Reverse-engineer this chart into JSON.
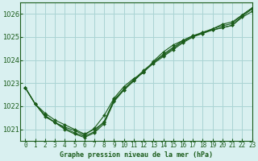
{
  "title": "Graphe pression niveau de la mer (hPa)",
  "background_color": "#d9f0f0",
  "grid_color": "#aad4d4",
  "line_color": "#1a5c1a",
  "marker_color": "#1a5c1a",
  "xlim": [
    -0.5,
    23
  ],
  "ylim": [
    1020.5,
    1026.5
  ],
  "yticks": [
    1021,
    1022,
    1023,
    1024,
    1025,
    1026
  ],
  "xticks": [
    0,
    1,
    2,
    3,
    4,
    5,
    6,
    7,
    8,
    9,
    10,
    11,
    12,
    13,
    14,
    15,
    16,
    17,
    18,
    19,
    20,
    21,
    22,
    23
  ],
  "series": [
    [
      1022.8,
      1022.1,
      1021.7,
      1021.4,
      1021.2,
      1021.0,
      1020.8,
      1021.0,
      1021.3,
      1022.3,
      1022.7,
      1023.1,
      1023.5,
      1023.9,
      1024.2,
      1024.5,
      1024.8,
      1025.0,
      1025.2,
      1025.3,
      1025.4,
      1025.5,
      1025.9,
      1026.2
    ],
    [
      1022.8,
      1022.1,
      1021.6,
      1021.3,
      1021.0,
      1020.8,
      1020.65,
      1020.85,
      1021.25,
      1022.2,
      1022.7,
      1023.1,
      1023.5,
      1023.85,
      1024.15,
      1024.45,
      1024.75,
      1025.0,
      1025.15,
      1025.3,
      1025.4,
      1025.5,
      1025.85,
      1026.1
    ],
    [
      1022.8,
      1022.1,
      1021.6,
      1021.3,
      1021.05,
      1020.85,
      1020.7,
      1020.9,
      1021.35,
      1022.25,
      1022.75,
      1023.15,
      1023.55,
      1023.9,
      1024.25,
      1024.55,
      1024.85,
      1025.05,
      1025.2,
      1025.35,
      1025.48,
      1025.58,
      1025.95,
      1026.25
    ],
    [
      1022.8,
      1022.1,
      1021.55,
      1021.3,
      1021.1,
      1020.95,
      1020.75,
      1021.05,
      1021.6,
      1022.35,
      1022.85,
      1023.2,
      1023.45,
      1023.95,
      1024.35,
      1024.65,
      1024.85,
      1025.05,
      1025.15,
      1025.35,
      1025.55,
      1025.65,
      1025.95,
      1026.25
    ]
  ]
}
